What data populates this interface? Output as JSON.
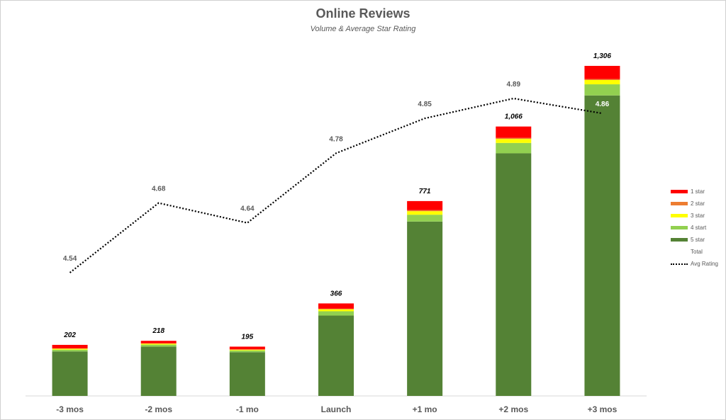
{
  "chart_data": {
    "type": "bar",
    "title": "Online Reviews",
    "subtitle": "Volume & Average Star Rating",
    "categories": [
      "-3 mos",
      "-2 mos",
      "-1 mo",
      "Launch",
      "+1 mo",
      "+2 mos",
      "+3 mos"
    ],
    "total_labels": [
      "202",
      "218",
      "195",
      "366",
      "771",
      "1,066",
      "1,306"
    ],
    "totals": [
      202,
      218,
      195,
      366,
      771,
      1066,
      1306
    ],
    "series": [
      {
        "name": "5 star",
        "color": "#548235",
        "values": [
          176,
          195,
          173,
          318,
          690,
          960,
          1189
        ]
      },
      {
        "name": "4 start",
        "color": "#92d050",
        "values": [
          7,
          8,
          7,
          17,
          27,
          41,
          44
        ]
      },
      {
        "name": "3 star",
        "color": "#ffff00",
        "values": [
          4,
          4,
          3,
          8,
          14,
          16,
          17
        ]
      },
      {
        "name": "2 star",
        "color": "#ed7d31",
        "values": [
          1,
          1,
          1,
          2,
          4,
          4,
          4
        ]
      },
      {
        "name": "1 star",
        "color": "#ff0000",
        "values": [
          14,
          10,
          11,
          21,
          36,
          45,
          52
        ]
      }
    ],
    "avg_rating": {
      "name": "Avg Rating",
      "values": [
        4.54,
        4.68,
        4.64,
        4.78,
        4.85,
        4.89,
        4.86
      ],
      "labels": [
        "4.54",
        "4.68",
        "4.64",
        "4.78",
        "4.85",
        "4.89",
        "4.86"
      ]
    },
    "legend": [
      "1 star",
      "2 star",
      "3 star",
      "4 start",
      "5 star",
      "Total",
      "Avg Rating"
    ],
    "legend_position": "right",
    "grid": false
  }
}
